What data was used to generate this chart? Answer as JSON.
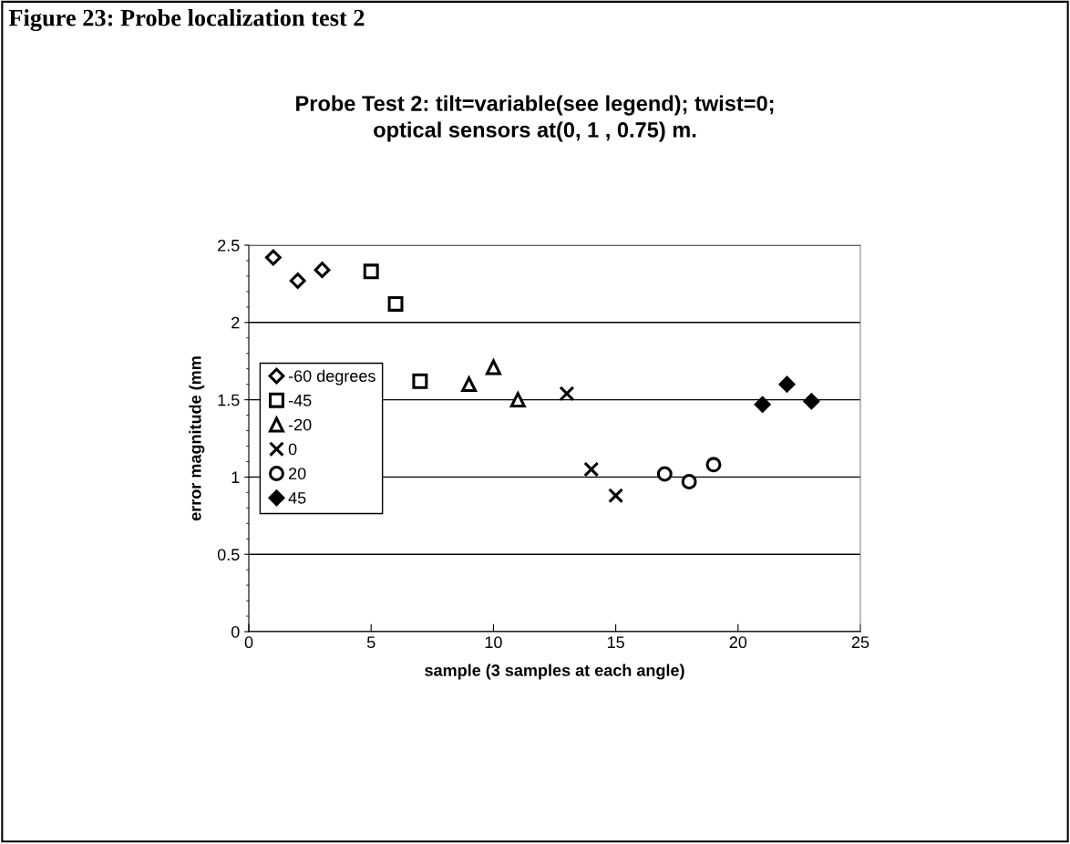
{
  "chart_data": {
    "type": "scatter",
    "title": "Probe Test 2: tilt=variable(see legend); twist=0;\noptical sensors at(0, 1 , 0.75) m.",
    "annotations": [
      "Figure 23: Probe localization test 2"
    ],
    "xlabel": "sample (3 samples at each angle)",
    "ylabel": "error magnitude (mm",
    "xlim": [
      0,
      25
    ],
    "xticks": [
      0,
      5,
      10,
      15,
      20,
      25
    ],
    "ylim": [
      0,
      2.5
    ],
    "yticks": [
      0,
      0.5,
      1,
      1.5,
      2,
      2.5
    ],
    "grid": "y",
    "legend": "left",
    "series": [
      {
        "name": "-60 degrees",
        "color": "#000000",
        "marker": "diamond",
        "x": [
          1,
          2,
          3
        ],
        "values": [
          2.42,
          2.27,
          2.34
        ]
      },
      {
        "name": "-45",
        "color": "#000000",
        "marker": "square",
        "x": [
          5,
          6,
          7
        ],
        "values": [
          2.33,
          2.12,
          1.62
        ]
      },
      {
        "name": "-20",
        "color": "#000000",
        "marker": "triangle",
        "x": [
          9,
          10,
          11
        ],
        "values": [
          1.6,
          1.71,
          1.5
        ]
      },
      {
        "name": "0",
        "color": "#000000",
        "marker": "cross",
        "x": [
          13,
          14,
          15
        ],
        "values": [
          1.54,
          1.05,
          0.88
        ]
      },
      {
        "name": "20",
        "color": "#000000",
        "marker": "circle",
        "x": [
          17,
          18,
          19
        ],
        "values": [
          1.02,
          0.97,
          1.08
        ]
      },
      {
        "name": "45",
        "color": "#000000",
        "marker": "diamond",
        "x": [
          21,
          22,
          23
        ],
        "values": [
          1.47,
          1.6,
          1.49
        ]
      }
    ]
  }
}
